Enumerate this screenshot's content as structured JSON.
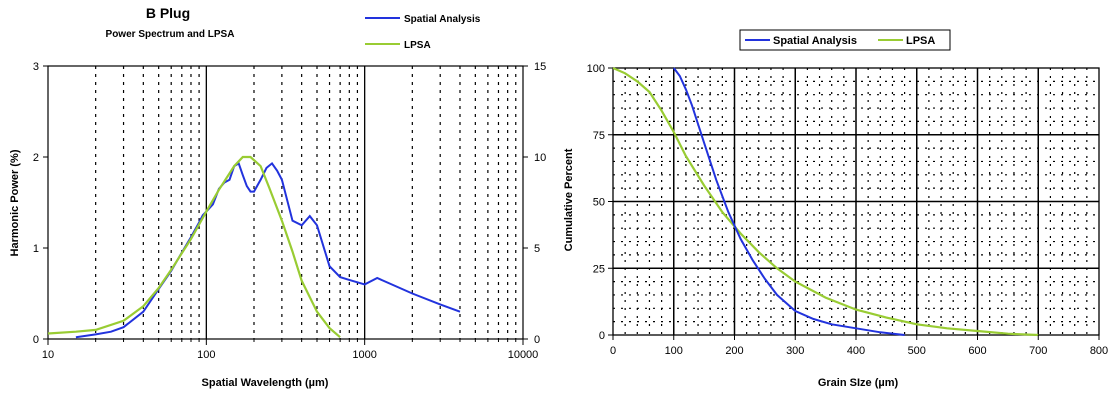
{
  "colors": {
    "spatial": "#2233dd",
    "lpsa": "#99cc33",
    "axis": "#000000"
  },
  "chart_data": [
    {
      "type": "line",
      "title": "B Plug",
      "subtitle": "Power Spectrum and LPSA",
      "xlabel": "Spatial Wavelength (µm)",
      "ylabel": "Harmonic Power (%)",
      "x_scale": "log",
      "xlim": [
        10,
        10000
      ],
      "ylim": [
        0,
        3
      ],
      "y2lim": [
        0,
        15
      ],
      "xticks": [
        "10",
        "100",
        "1000",
        "10000"
      ],
      "yticks": [
        "0",
        "1",
        "2",
        "3"
      ],
      "y2ticks": [
        "0",
        "5",
        "10",
        "15"
      ],
      "grid": "dashed vertical at log minor ticks, solid at decades",
      "legend": "top-right, stacked",
      "series": [
        {
          "name": "Spatial Analysis",
          "axis": "left",
          "x": [
            15,
            20,
            25,
            30,
            40,
            50,
            60,
            70,
            80,
            90,
            95,
            100,
            110,
            120,
            130,
            140,
            150,
            160,
            170,
            180,
            190,
            200,
            220,
            240,
            260,
            280,
            300,
            350,
            400,
            450,
            500,
            600,
            700,
            800,
            1000,
            1200,
            2000,
            3000,
            4000
          ],
          "values": [
            0.02,
            0.05,
            0.08,
            0.13,
            0.3,
            0.55,
            0.75,
            0.95,
            1.12,
            1.28,
            1.36,
            1.4,
            1.48,
            1.65,
            1.72,
            1.75,
            1.9,
            1.93,
            1.8,
            1.68,
            1.62,
            1.62,
            1.75,
            1.88,
            1.93,
            1.85,
            1.75,
            1.3,
            1.25,
            1.35,
            1.25,
            0.8,
            0.68,
            0.65,
            0.6,
            0.67,
            0.5,
            0.38,
            0.3
          ]
        },
        {
          "name": "LPSA",
          "axis": "right",
          "x": [
            10,
            15,
            20,
            30,
            40,
            50,
            60,
            80,
            100,
            120,
            150,
            170,
            190,
            220,
            250,
            300,
            350,
            400,
            500,
            600,
            700
          ],
          "values": [
            0.3,
            0.4,
            0.5,
            1.0,
            1.8,
            2.8,
            3.8,
            5.5,
            7.0,
            8.2,
            9.5,
            10.0,
            10.0,
            9.5,
            8.3,
            6.5,
            4.8,
            3.2,
            1.5,
            0.6,
            0.1
          ]
        }
      ]
    },
    {
      "type": "line",
      "xlabel": "Grain SIze (µm)",
      "ylabel": "Cumulative Percent",
      "xlim": [
        0,
        800
      ],
      "ylim": [
        0,
        100
      ],
      "xticks": [
        "0",
        "100",
        "200",
        "300",
        "400",
        "500",
        "600",
        "700",
        "800"
      ],
      "yticks": [
        "0",
        "25",
        "50",
        "75",
        "100"
      ],
      "grid": "solid major, dashed minor",
      "legend": "top, horizontal",
      "series": [
        {
          "name": "Spatial Analysis",
          "x": [
            100,
            110,
            120,
            130,
            150,
            170,
            190,
            210,
            230,
            250,
            270,
            300,
            330,
            360,
            400,
            440,
            480
          ],
          "values": [
            100,
            97,
            92,
            86,
            72,
            58,
            46,
            36,
            28,
            21,
            15,
            9,
            6,
            4,
            2.5,
            1,
            0
          ]
        },
        {
          "name": "LPSA",
          "x": [
            0,
            20,
            40,
            60,
            80,
            100,
            120,
            150,
            180,
            210,
            240,
            270,
            300,
            350,
            400,
            450,
            500,
            550,
            600,
            650,
            700
          ],
          "values": [
            100,
            98,
            95,
            91,
            84,
            76,
            67,
            56,
            46,
            38,
            31,
            25,
            20,
            14,
            9.5,
            6.5,
            4,
            2.5,
            1.5,
            0.5,
            0
          ]
        }
      ]
    }
  ]
}
